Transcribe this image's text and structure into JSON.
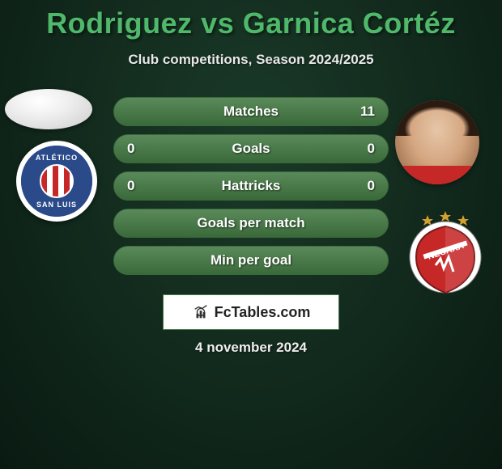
{
  "background": {
    "color_from": "#1a3a28",
    "color_to": "#0a1a12"
  },
  "title": {
    "text": "Rodriguez vs Garnica Cortéz",
    "color": "#4fb86a"
  },
  "subtitle": "Club competitions, Season 2024/2025",
  "stats": {
    "row_bg": "#5a8a5a",
    "row_border": "#3a6a3a",
    "rows": [
      {
        "left": "",
        "label": "Matches",
        "right": "11"
      },
      {
        "left": "0",
        "label": "Goals",
        "right": "0"
      },
      {
        "left": "0",
        "label": "Hattricks",
        "right": "0"
      },
      {
        "left": "",
        "label": "Goals per match",
        "right": ""
      },
      {
        "left": "",
        "label": "Min per goal",
        "right": ""
      }
    ]
  },
  "club_left": {
    "name_top": "ATLÉTICO",
    "name_bottom": "SAN LUIS",
    "bg_color": "#2a4a8a"
  },
  "club_right": {
    "name": "NECAXA",
    "shield_color": "#c62828",
    "stripe_color": "#ffffff",
    "star_color": "#d4a030"
  },
  "fctables_label": "FcTables.com",
  "date": "4 november 2024"
}
